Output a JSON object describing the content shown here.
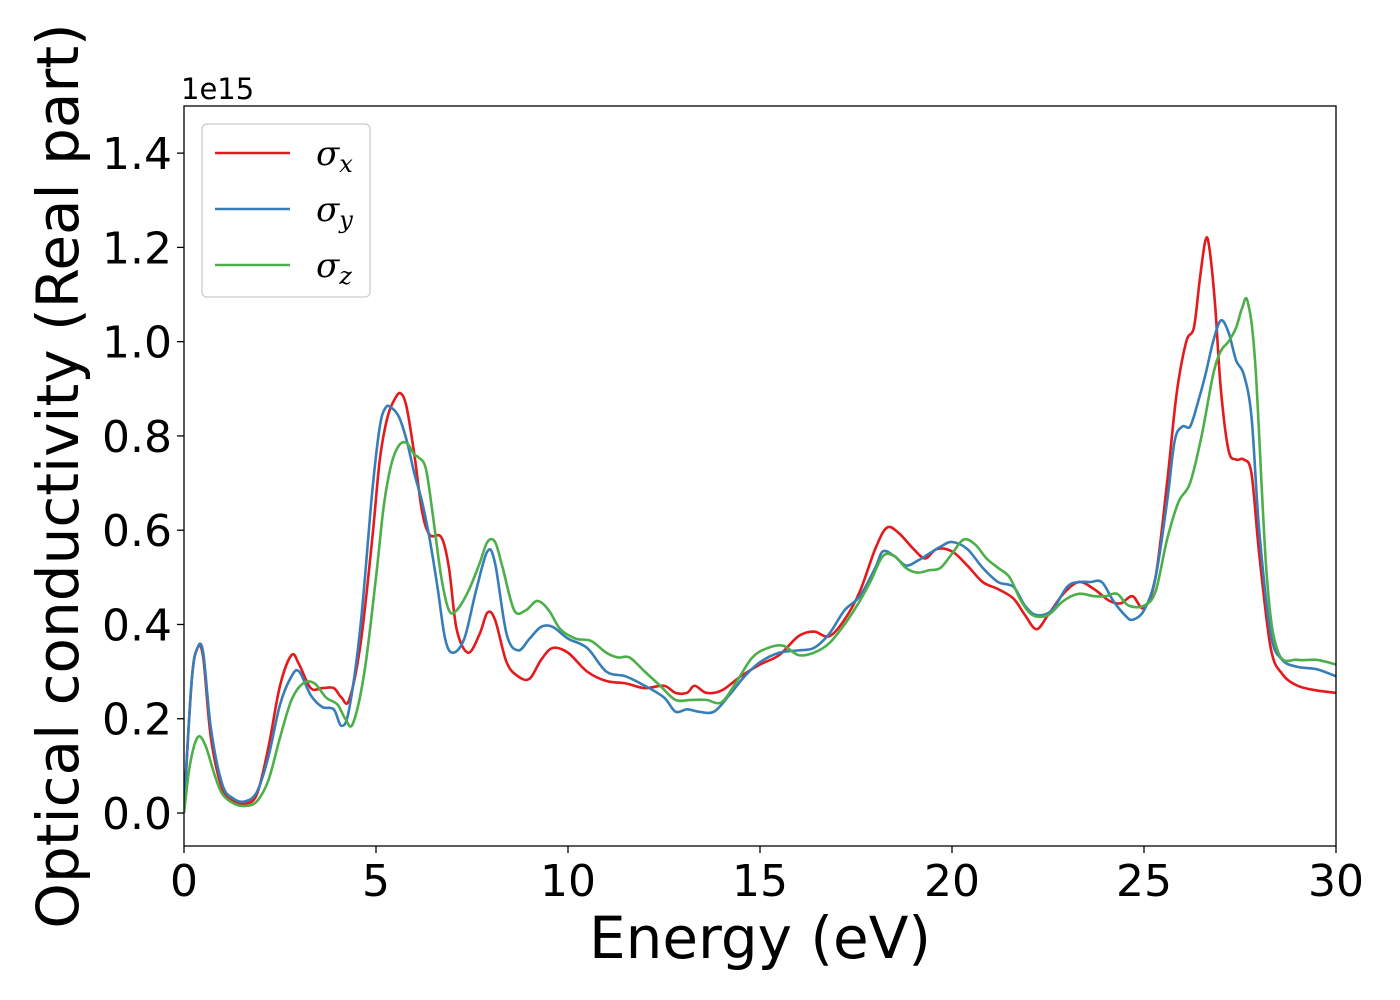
{
  "chart_data": {
    "type": "line",
    "title": "",
    "xlabel": "Energy (eV)",
    "ylabel": "Optical conductivity (Real part)",
    "y_offset_label": "1e15",
    "y_scale": 1000000000000000.0,
    "xlim": [
      0,
      30
    ],
    "ylim": [
      -0.07,
      1.5
    ],
    "x_ticks": [
      0,
      5,
      10,
      15,
      20,
      25,
      30
    ],
    "x_tick_labels": [
      "0",
      "5",
      "10",
      "15",
      "20",
      "25",
      "30"
    ],
    "y_ticks": [
      0.0,
      0.2,
      0.4,
      0.6,
      0.8,
      1.0,
      1.2,
      1.4
    ],
    "y_tick_labels": [
      "0.0",
      "0.2",
      "0.4",
      "0.6",
      "0.8",
      "1.0",
      "1.2",
      "1.4"
    ],
    "grid": false,
    "legend_position": "top-left",
    "series": [
      {
        "name": "σ",
        "subscript": "x",
        "color": "#e41a1c",
        "x": [
          0,
          0.2,
          0.35,
          0.5,
          0.7,
          1.0,
          1.3,
          1.6,
          1.9,
          2.2,
          2.5,
          2.8,
          3.0,
          3.3,
          3.6,
          3.9,
          4.1,
          4.3,
          4.6,
          4.9,
          5.1,
          5.3,
          5.5,
          5.65,
          5.8,
          6.0,
          6.2,
          6.4,
          6.7,
          6.9,
          7.1,
          7.4,
          7.7,
          7.9,
          8.1,
          8.4,
          8.7,
          9.0,
          9.3,
          9.6,
          10.0,
          10.5,
          11.0,
          11.5,
          12.0,
          12.5,
          12.8,
          13.1,
          13.3,
          13.6,
          14.0,
          14.5,
          15.0,
          15.5,
          16.0,
          16.4,
          16.8,
          17.2,
          17.6,
          18.0,
          18.3,
          18.6,
          19.0,
          19.3,
          19.6,
          20.0,
          20.4,
          20.8,
          21.2,
          21.6,
          21.9,
          22.2,
          22.5,
          22.9,
          23.3,
          23.7,
          24.1,
          24.4,
          24.7,
          25.0,
          25.3,
          25.6,
          25.85,
          26.1,
          26.3,
          26.45,
          26.6,
          26.7,
          26.85,
          27.0,
          27.2,
          27.4,
          27.6,
          27.8,
          28.0,
          28.3,
          28.6,
          29.0,
          29.5,
          30.0
        ],
        "y": [
          0.01,
          0.28,
          0.35,
          0.33,
          0.16,
          0.05,
          0.025,
          0.02,
          0.04,
          0.14,
          0.27,
          0.335,
          0.315,
          0.265,
          0.265,
          0.265,
          0.245,
          0.24,
          0.36,
          0.58,
          0.75,
          0.84,
          0.88,
          0.89,
          0.86,
          0.76,
          0.64,
          0.59,
          0.585,
          0.52,
          0.39,
          0.34,
          0.38,
          0.425,
          0.41,
          0.32,
          0.29,
          0.285,
          0.325,
          0.35,
          0.34,
          0.3,
          0.28,
          0.275,
          0.265,
          0.27,
          0.255,
          0.255,
          0.27,
          0.255,
          0.26,
          0.29,
          0.315,
          0.335,
          0.375,
          0.385,
          0.375,
          0.41,
          0.47,
          0.56,
          0.605,
          0.595,
          0.56,
          0.54,
          0.56,
          0.555,
          0.525,
          0.49,
          0.475,
          0.455,
          0.42,
          0.39,
          0.42,
          0.465,
          0.49,
          0.475,
          0.45,
          0.445,
          0.46,
          0.435,
          0.5,
          0.7,
          0.89,
          1.0,
          1.03,
          1.13,
          1.215,
          1.2,
          1.08,
          0.9,
          0.77,
          0.75,
          0.75,
          0.72,
          0.55,
          0.35,
          0.295,
          0.27,
          0.26,
          0.255
        ]
      },
      {
        "name": "σ",
        "subscript": "y",
        "color": "#377eb8",
        "x": [
          0,
          0.2,
          0.35,
          0.5,
          0.7,
          1.0,
          1.3,
          1.6,
          1.9,
          2.2,
          2.5,
          2.8,
          3.0,
          3.3,
          3.6,
          3.9,
          4.1,
          4.3,
          4.6,
          4.9,
          5.1,
          5.25,
          5.4,
          5.6,
          5.8,
          6.0,
          6.2,
          6.4,
          6.6,
          6.8,
          7.0,
          7.3,
          7.6,
          7.9,
          8.1,
          8.4,
          8.7,
          9.0,
          9.3,
          9.6,
          10.0,
          10.5,
          11.0,
          11.5,
          12.0,
          12.5,
          12.8,
          13.1,
          13.4,
          13.8,
          14.2,
          14.6,
          15.0,
          15.5,
          16.0,
          16.4,
          16.8,
          17.2,
          17.6,
          18.0,
          18.2,
          18.5,
          18.8,
          19.1,
          19.4,
          19.7,
          20.0,
          20.4,
          20.8,
          21.2,
          21.6,
          21.9,
          22.2,
          22.6,
          23.0,
          23.3,
          23.6,
          23.9,
          24.2,
          24.5,
          24.7,
          25.0,
          25.3,
          25.6,
          25.8,
          26.0,
          26.2,
          26.4,
          26.6,
          26.8,
          27.0,
          27.2,
          27.4,
          27.6,
          27.8,
          28.0,
          28.3,
          28.6,
          29.0,
          29.5,
          30.0
        ],
        "y": [
          0.01,
          0.28,
          0.35,
          0.34,
          0.18,
          0.06,
          0.03,
          0.025,
          0.045,
          0.12,
          0.23,
          0.29,
          0.3,
          0.25,
          0.225,
          0.22,
          0.185,
          0.22,
          0.4,
          0.68,
          0.82,
          0.86,
          0.86,
          0.84,
          0.79,
          0.72,
          0.66,
          0.58,
          0.48,
          0.37,
          0.34,
          0.37,
          0.47,
          0.555,
          0.53,
          0.38,
          0.345,
          0.37,
          0.395,
          0.395,
          0.37,
          0.35,
          0.3,
          0.29,
          0.27,
          0.245,
          0.215,
          0.22,
          0.215,
          0.215,
          0.25,
          0.29,
          0.32,
          0.34,
          0.345,
          0.35,
          0.38,
          0.43,
          0.46,
          0.52,
          0.555,
          0.545,
          0.525,
          0.535,
          0.55,
          0.565,
          0.575,
          0.56,
          0.52,
          0.49,
          0.48,
          0.44,
          0.42,
          0.43,
          0.48,
          0.49,
          0.49,
          0.49,
          0.45,
          0.42,
          0.41,
          0.43,
          0.5,
          0.66,
          0.79,
          0.82,
          0.82,
          0.87,
          0.93,
          1.0,
          1.045,
          1.02,
          0.96,
          0.93,
          0.84,
          0.6,
          0.38,
          0.325,
          0.31,
          0.305,
          0.29
        ]
      },
      {
        "name": "σ",
        "subscript": "z",
        "color": "#4daf4a",
        "x": [
          0,
          0.15,
          0.35,
          0.55,
          0.8,
          1.0,
          1.3,
          1.6,
          1.9,
          2.2,
          2.5,
          2.8,
          3.1,
          3.4,
          3.7,
          4.0,
          4.2,
          4.4,
          4.7,
          5.0,
          5.2,
          5.4,
          5.6,
          5.8,
          6.0,
          6.1,
          6.3,
          6.5,
          6.7,
          6.9,
          7.1,
          7.4,
          7.7,
          7.9,
          8.1,
          8.3,
          8.6,
          8.9,
          9.2,
          9.5,
          9.8,
          10.2,
          10.6,
          11.0,
          11.3,
          11.6,
          12.0,
          12.4,
          12.8,
          13.2,
          13.6,
          14.0,
          14.4,
          14.8,
          15.2,
          15.6,
          16.0,
          16.4,
          16.8,
          17.2,
          17.6,
          17.9,
          18.2,
          18.5,
          18.8,
          19.1,
          19.4,
          19.7,
          20.0,
          20.3,
          20.6,
          20.9,
          21.2,
          21.5,
          21.8,
          22.1,
          22.5,
          22.9,
          23.3,
          23.7,
          24.0,
          24.3,
          24.6,
          25.0,
          25.3,
          25.6,
          25.9,
          26.2,
          26.5,
          26.8,
          27.0,
          27.2,
          27.4,
          27.55,
          27.7,
          27.9,
          28.2,
          28.5,
          29.0,
          29.5,
          30.0
        ],
        "y": [
          0.0,
          0.1,
          0.16,
          0.145,
          0.08,
          0.04,
          0.02,
          0.015,
          0.025,
          0.07,
          0.16,
          0.24,
          0.275,
          0.275,
          0.245,
          0.23,
          0.2,
          0.19,
          0.3,
          0.5,
          0.65,
          0.74,
          0.78,
          0.785,
          0.76,
          0.755,
          0.73,
          0.62,
          0.5,
          0.43,
          0.43,
          0.47,
          0.53,
          0.575,
          0.575,
          0.52,
          0.43,
          0.43,
          0.45,
          0.43,
          0.39,
          0.37,
          0.365,
          0.34,
          0.33,
          0.33,
          0.3,
          0.27,
          0.24,
          0.24,
          0.24,
          0.235,
          0.28,
          0.33,
          0.35,
          0.355,
          0.335,
          0.34,
          0.36,
          0.4,
          0.45,
          0.495,
          0.545,
          0.545,
          0.52,
          0.51,
          0.515,
          0.52,
          0.55,
          0.58,
          0.57,
          0.54,
          0.52,
          0.5,
          0.45,
          0.42,
          0.42,
          0.45,
          0.465,
          0.46,
          0.46,
          0.465,
          0.44,
          0.44,
          0.47,
          0.58,
          0.66,
          0.7,
          0.8,
          0.93,
          0.98,
          1.0,
          1.03,
          1.07,
          1.085,
          0.95,
          0.5,
          0.34,
          0.325,
          0.325,
          0.315
        ]
      }
    ]
  }
}
